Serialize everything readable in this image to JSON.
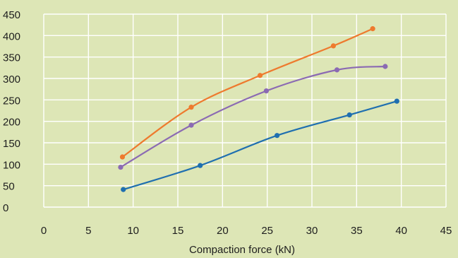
{
  "chart_data": {
    "type": "line",
    "title": "",
    "xlabel": "Compaction force (kN)",
    "ylabel": "",
    "xlim": [
      0,
      45
    ],
    "ylim": [
      0,
      450
    ],
    "xticks": [
      0,
      5,
      10,
      15,
      20,
      25,
      30,
      35,
      40,
      45
    ],
    "yticks": [
      0,
      50,
      100,
      150,
      200,
      250,
      300,
      350,
      400,
      450
    ],
    "grid": true,
    "legend": "none",
    "series": [
      {
        "color": "#ee7a2e",
        "points": [
          [
            8.8,
            117
          ],
          [
            16.5,
            233
          ],
          [
            24.2,
            307
          ],
          [
            32.4,
            376
          ],
          [
            36.8,
            416
          ]
        ]
      },
      {
        "color": "#8b6ab3",
        "points": [
          [
            8.6,
            93
          ],
          [
            16.5,
            191
          ],
          [
            24.9,
            271
          ],
          [
            32.8,
            320
          ],
          [
            38.2,
            328
          ]
        ]
      },
      {
        "color": "#1f6fb0",
        "points": [
          [
            8.9,
            41
          ],
          [
            17.5,
            97
          ],
          [
            26.1,
            167
          ],
          [
            34.2,
            215
          ],
          [
            39.5,
            247
          ]
        ]
      }
    ]
  }
}
